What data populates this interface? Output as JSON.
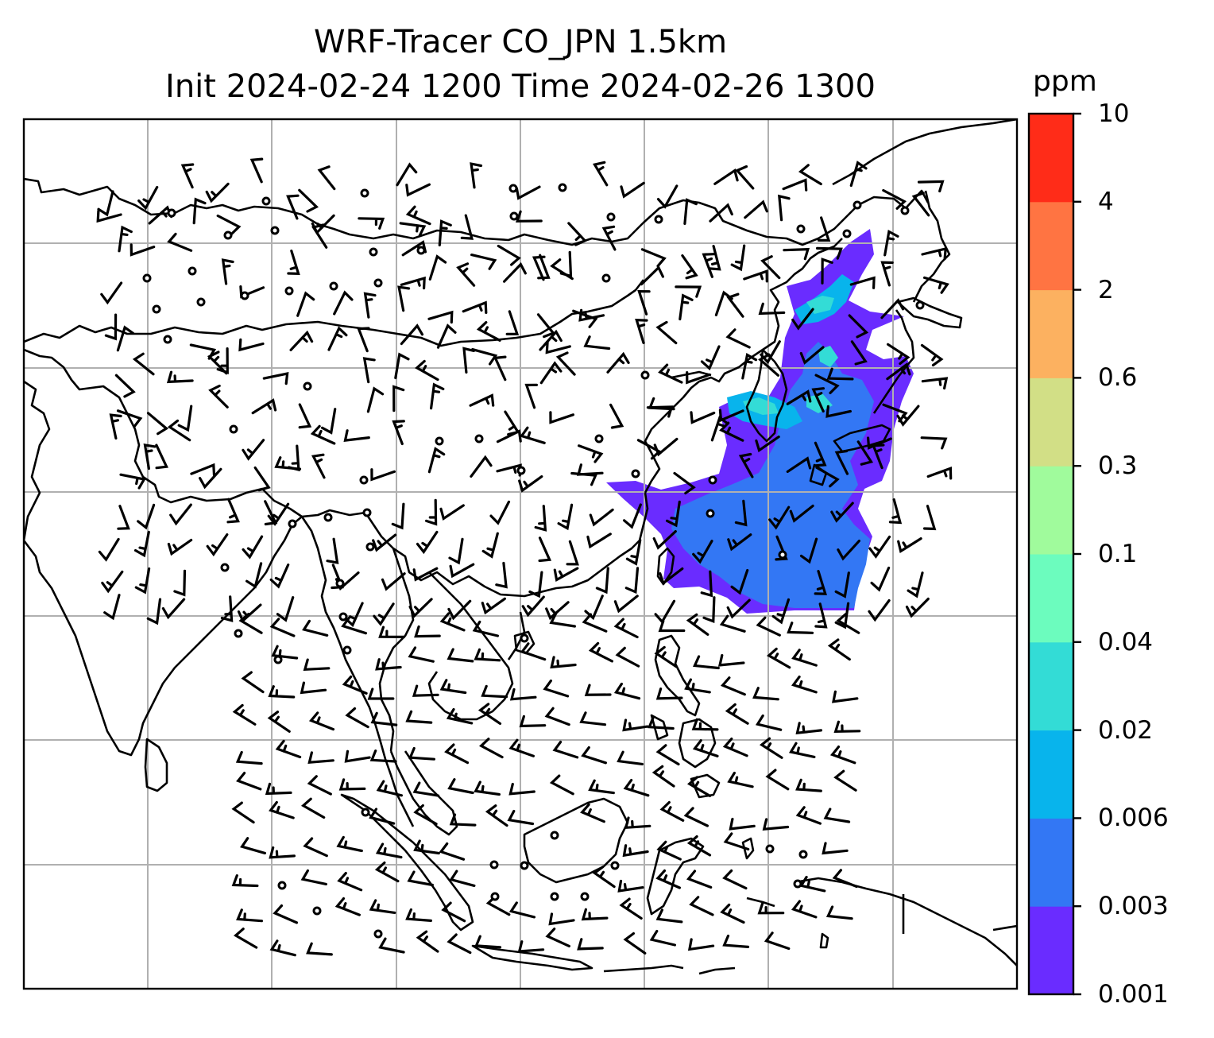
{
  "title": {
    "line1": "WRF-Tracer CO_JPN 1.5km",
    "line2": "Init 2024-02-24 1200 Time 2024-02-26 1300"
  },
  "colorbar": {
    "unit": "ppm",
    "levels": [
      "0.001",
      "0.003",
      "0.006",
      "0.02",
      "0.04",
      "0.1",
      "0.3",
      "0.6",
      "2",
      "4",
      "10"
    ],
    "colors": [
      "#6a2cff",
      "#3377f4",
      "#08b4ec",
      "#33dcd6",
      "#6cfcbe",
      "#a0fb9c",
      "#d2df86",
      "#fcb160",
      "#ff7442",
      "#ff2c18"
    ]
  },
  "map": {
    "gridlines": true,
    "coastline_color": "#000000",
    "grid_color": "#b0b0b0",
    "wind_barb_color": "#000000",
    "plume_colors": {
      "lowest": "#6a2cff",
      "low": "#3377f4",
      "mid": "#08b4ec",
      "upper": "#33dcd6"
    }
  }
}
